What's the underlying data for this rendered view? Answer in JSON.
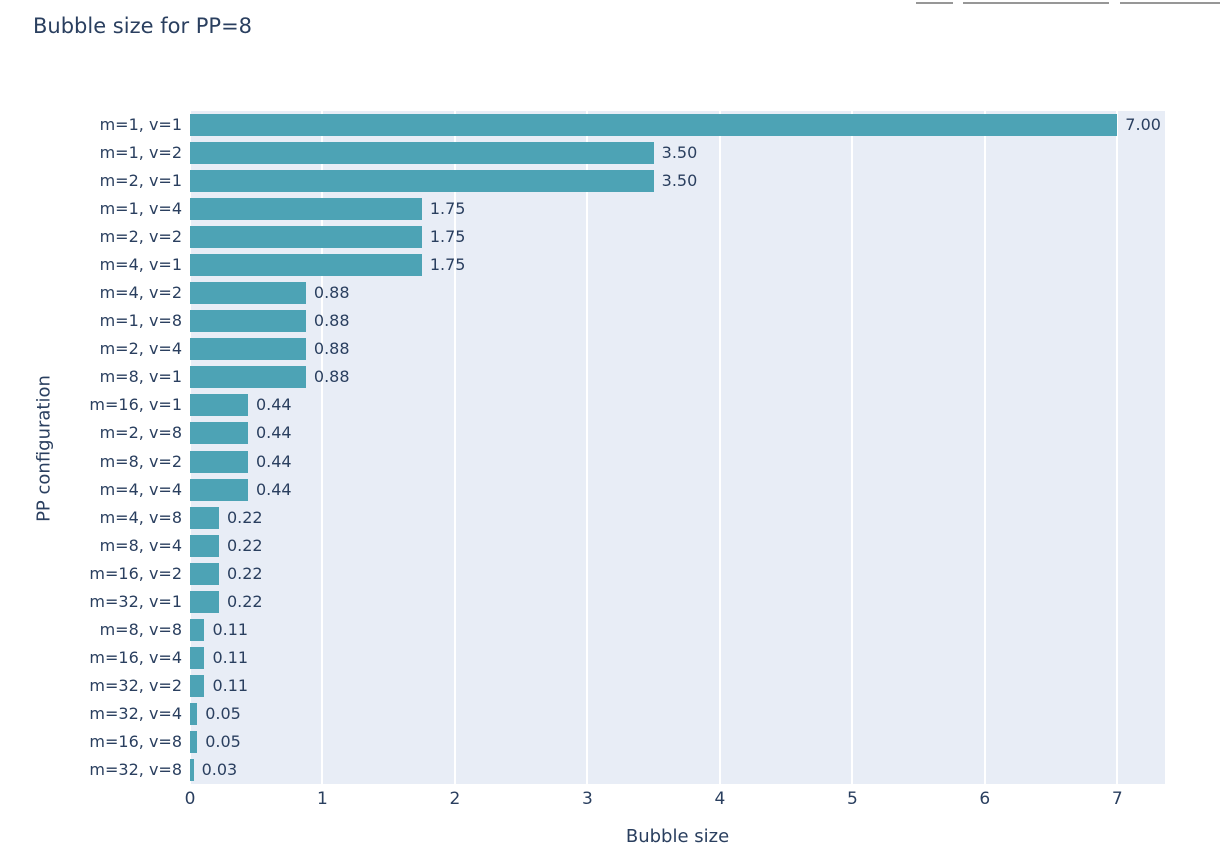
{
  "page": {
    "title": "Bubble size for PP=8"
  },
  "colors": {
    "bar": "#4da3b5",
    "plot_bg": "#e8edf6",
    "grid": "#ffffff",
    "text": "#2a3f5f",
    "cropped_fragment": "#979797"
  },
  "chart_data": {
    "type": "bar",
    "orientation": "horizontal",
    "title": "Bubble size for PP=8",
    "xlabel": "Bubble size",
    "ylabel": "PP configuration",
    "categories": [
      "m=1, v=1",
      "m=1, v=2",
      "m=2, v=1",
      "m=1, v=4",
      "m=2, v=2",
      "m=4, v=1",
      "m=4, v=2",
      "m=1, v=8",
      "m=2, v=4",
      "m=8, v=1",
      "m=16, v=1",
      "m=2, v=8",
      "m=8, v=2",
      "m=4, v=4",
      "m=4, v=8",
      "m=8, v=4",
      "m=16, v=2",
      "m=32, v=1",
      "m=8, v=8",
      "m=16, v=4",
      "m=32, v=2",
      "m=32, v=4",
      "m=16, v=8",
      "m=32, v=8"
    ],
    "values": [
      7,
      3.5,
      3.5,
      1.75,
      1.75,
      1.75,
      0.875,
      0.875,
      0.875,
      0.875,
      0.4375,
      0.4375,
      0.4375,
      0.4375,
      0.21875,
      0.21875,
      0.21875,
      0.21875,
      0.109375,
      0.109375,
      0.109375,
      0.0546875,
      0.0546875,
      0.02734375
    ],
    "bar_labels": [
      "7.00",
      "3.50",
      "3.50",
      "1.75",
      "1.75",
      "1.75",
      "0.88",
      "0.88",
      "0.88",
      "0.88",
      "0.44",
      "0.44",
      "0.44",
      "0.44",
      "0.22",
      "0.22",
      "0.22",
      "0.22",
      "0.11",
      "0.11",
      "0.11",
      "0.05",
      "0.05",
      "0.03"
    ],
    "xticks": [
      "0",
      "1",
      "2",
      "3",
      "4",
      "5",
      "6",
      "7"
    ],
    "xtick_values": [
      0,
      1,
      2,
      3,
      4,
      5,
      6,
      7
    ],
    "xlim": [
      0,
      7.36
    ],
    "grid": true,
    "legend": "none"
  }
}
